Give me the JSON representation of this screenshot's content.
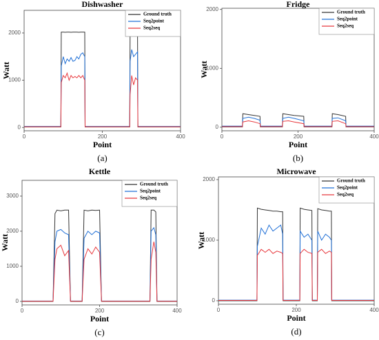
{
  "chart_data": [
    {
      "type": "line",
      "title": "Dishwasher",
      "label": "(a)",
      "x_label": "Point",
      "y_label": "Watt",
      "xlim": [
        0,
        400
      ],
      "xticks": [
        0,
        200,
        400
      ],
      "ylim": [
        -70,
        2480
      ],
      "yticks": [
        0,
        1000,
        2000
      ],
      "legend": "upper right",
      "x": [
        0,
        94,
        95,
        100,
        105,
        110,
        115,
        120,
        125,
        130,
        135,
        140,
        145,
        150,
        155,
        156,
        270,
        271,
        275,
        280,
        285,
        290,
        291,
        400
      ],
      "series": [
        {
          "name": "Ground truth",
          "color": "#333333",
          "values": [
            10,
            10,
            2020,
            2020,
            2015,
            2020,
            2020,
            2015,
            2020,
            2020,
            2020,
            2015,
            2020,
            2020,
            2020,
            10,
            10,
            2020,
            2020,
            2015,
            2010,
            2020,
            10,
            10
          ]
        },
        {
          "name": "Seq2point",
          "color": "#1f6fd6",
          "values": [
            20,
            20,
            1300,
            1500,
            1350,
            1450,
            1400,
            1480,
            1400,
            1420,
            1500,
            1450,
            1550,
            1580,
            1500,
            20,
            20,
            1400,
            1650,
            1500,
            1550,
            1600,
            20,
            20
          ]
        },
        {
          "name": "Seq2seq",
          "color": "#e8383d",
          "values": [
            15,
            15,
            950,
            1100,
            1050,
            1150,
            1000,
            1100,
            1050,
            1080,
            1050,
            1100,
            1050,
            1100,
            1000,
            15,
            15,
            700,
            1100,
            900,
            1050,
            1000,
            15,
            15
          ]
        }
      ]
    },
    {
      "type": "line",
      "title": "Fridge",
      "label": "(b)",
      "x_label": "Point",
      "y_label": "Watt",
      "xlim": [
        0,
        400
      ],
      "xticks": [
        0,
        200,
        400
      ],
      "ylim": [
        -60,
        2020
      ],
      "yticks": [
        0,
        1000,
        2000
      ],
      "legend": "upper right",
      "x": [
        0,
        54,
        55,
        70,
        85,
        100,
        101,
        159,
        160,
        175,
        190,
        215,
        216,
        289,
        290,
        305,
        325,
        326,
        400
      ],
      "series": [
        {
          "name": "Ground truth",
          "color": "#333333",
          "values": [
            5,
            5,
            230,
            215,
            200,
            185,
            5,
            5,
            230,
            215,
            200,
            185,
            5,
            5,
            230,
            215,
            185,
            5,
            5
          ]
        },
        {
          "name": "Seq2point",
          "color": "#1f6fd6",
          "values": [
            20,
            20,
            150,
            170,
            150,
            120,
            20,
            20,
            150,
            170,
            150,
            110,
            20,
            20,
            150,
            160,
            110,
            20,
            20
          ]
        },
        {
          "name": "Seq2seq",
          "color": "#e8383d",
          "values": [
            10,
            10,
            90,
            110,
            90,
            60,
            10,
            10,
            100,
            110,
            90,
            60,
            10,
            10,
            100,
            110,
            60,
            10,
            10
          ]
        }
      ]
    },
    {
      "type": "line",
      "title": "Kettle",
      "label": "(c)",
      "x_label": "Point",
      "y_label": "Watt",
      "xlim": [
        0,
        400
      ],
      "xticks": [
        0,
        200,
        400
      ],
      "ylim": [
        -100,
        3450
      ],
      "yticks": [
        0,
        1000,
        2000,
        3000
      ],
      "legend": "upper right",
      "x": [
        0,
        80,
        85,
        90,
        100,
        110,
        120,
        125,
        155,
        160,
        170,
        180,
        190,
        200,
        205,
        330,
        333,
        340,
        345,
        348,
        400
      ],
      "series": [
        {
          "name": "Ground truth",
          "color": "#333333",
          "values": [
            0,
            0,
            2500,
            2600,
            2580,
            2600,
            2600,
            0,
            0,
            2600,
            2580,
            2600,
            2590,
            2600,
            0,
            0,
            2600,
            2600,
            2550,
            0,
            0
          ]
        },
        {
          "name": "Seq2point",
          "color": "#1f6fd6",
          "values": [
            10,
            10,
            1700,
            2000,
            2050,
            1950,
            1900,
            10,
            10,
            1800,
            2000,
            1900,
            2000,
            1950,
            10,
            10,
            2000,
            2100,
            1900,
            10,
            10
          ]
        },
        {
          "name": "Seq2seq",
          "color": "#e8383d",
          "values": [
            5,
            5,
            1200,
            1500,
            1600,
            1300,
            1450,
            5,
            5,
            1200,
            1500,
            1350,
            1550,
            1400,
            5,
            5,
            1200,
            1700,
            1400,
            5,
            5
          ]
        }
      ]
    },
    {
      "type": "line",
      "title": "Microwave",
      "label": "(d)",
      "x_label": "Point",
      "y_label": "Watt",
      "xlim": [
        0,
        400
      ],
      "xticks": [
        0,
        200,
        400
      ],
      "ylim": [
        -57,
        2045
      ],
      "yticks": [
        0,
        1000,
        2000
      ],
      "legend": "upper right",
      "x": [
        0,
        99,
        100,
        110,
        120,
        130,
        140,
        150,
        160,
        165,
        166,
        209,
        210,
        220,
        230,
        240,
        241,
        254,
        255,
        265,
        275,
        285,
        290,
        291,
        400
      ],
      "series": [
        {
          "name": "Ground truth",
          "color": "#333333",
          "values": [
            0,
            0,
            1530,
            1510,
            1500,
            1490,
            1480,
            1480,
            1470,
            1470,
            0,
            0,
            1530,
            1510,
            1500,
            1490,
            0,
            0,
            1520,
            1500,
            1490,
            1480,
            1480,
            0,
            0
          ]
        },
        {
          "name": "Seq2point",
          "color": "#1f6fd6",
          "values": [
            10,
            10,
            900,
            1200,
            1100,
            1250,
            1150,
            1200,
            1250,
            1100,
            10,
            10,
            1150,
            1050,
            1100,
            1000,
            10,
            10,
            1150,
            1000,
            1100,
            1050,
            1000,
            10,
            10
          ]
        },
        {
          "name": "Seq2seq",
          "color": "#e8383d",
          "values": [
            5,
            5,
            750,
            850,
            800,
            850,
            780,
            820,
            800,
            780,
            5,
            5,
            780,
            850,
            800,
            780,
            5,
            5,
            800,
            850,
            780,
            820,
            800,
            5,
            5
          ]
        }
      ]
    }
  ]
}
